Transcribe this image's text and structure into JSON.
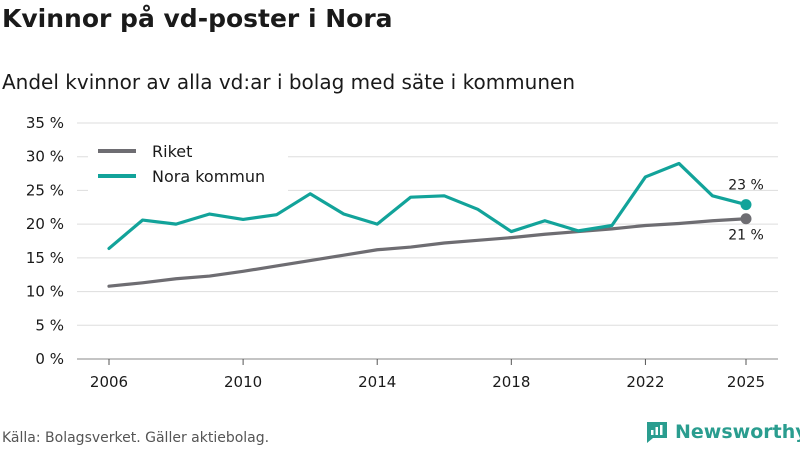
{
  "title": "Kvinnor på vd-poster i Nora",
  "subtitle": "Andel kvinnor av alla vd:ar i bolag med säte i kommunen",
  "source": "Källa: Bolagsverket. Gäller aktiebolag.",
  "brand": "Newsworthy",
  "colors": {
    "riket": "#6e6d72",
    "nora": "#12a39a",
    "grid": "#dddddd",
    "brand": "#2a9d8f"
  },
  "chart_data": {
    "type": "line",
    "x": [
      2006,
      2007,
      2008,
      2009,
      2010,
      2011,
      2012,
      2013,
      2014,
      2015,
      2016,
      2017,
      2018,
      2019,
      2020,
      2021,
      2022,
      2023,
      2024,
      2025
    ],
    "series": [
      {
        "name": "Riket",
        "values": [
          10.8,
          11.3,
          11.9,
          12.3,
          13.0,
          13.8,
          14.6,
          15.4,
          16.2,
          16.6,
          17.2,
          17.6,
          18.0,
          18.5,
          18.9,
          19.3,
          19.8,
          20.1,
          20.5,
          20.8
        ]
      },
      {
        "name": "Nora kommun",
        "values": [
          16.4,
          20.6,
          20.0,
          21.5,
          20.7,
          21.4,
          24.5,
          21.5,
          20.0,
          24.0,
          24.2,
          22.2,
          18.9,
          20.5,
          19.0,
          19.8,
          27.0,
          29.0,
          24.2,
          22.9
        ]
      }
    ],
    "y_ticks": [
      "0 %",
      "5 %",
      "10 %",
      "15 %",
      "20 %",
      "25 %",
      "30 %",
      "35 %"
    ],
    "x_ticks": [
      "2006",
      "2010",
      "2014",
      "2018",
      "2022",
      "2025"
    ],
    "end_labels": {
      "nora": "23 %",
      "riket": "21 %"
    },
    "ylim": [
      0,
      35
    ],
    "legend_position": "top-left",
    "grid": true
  }
}
